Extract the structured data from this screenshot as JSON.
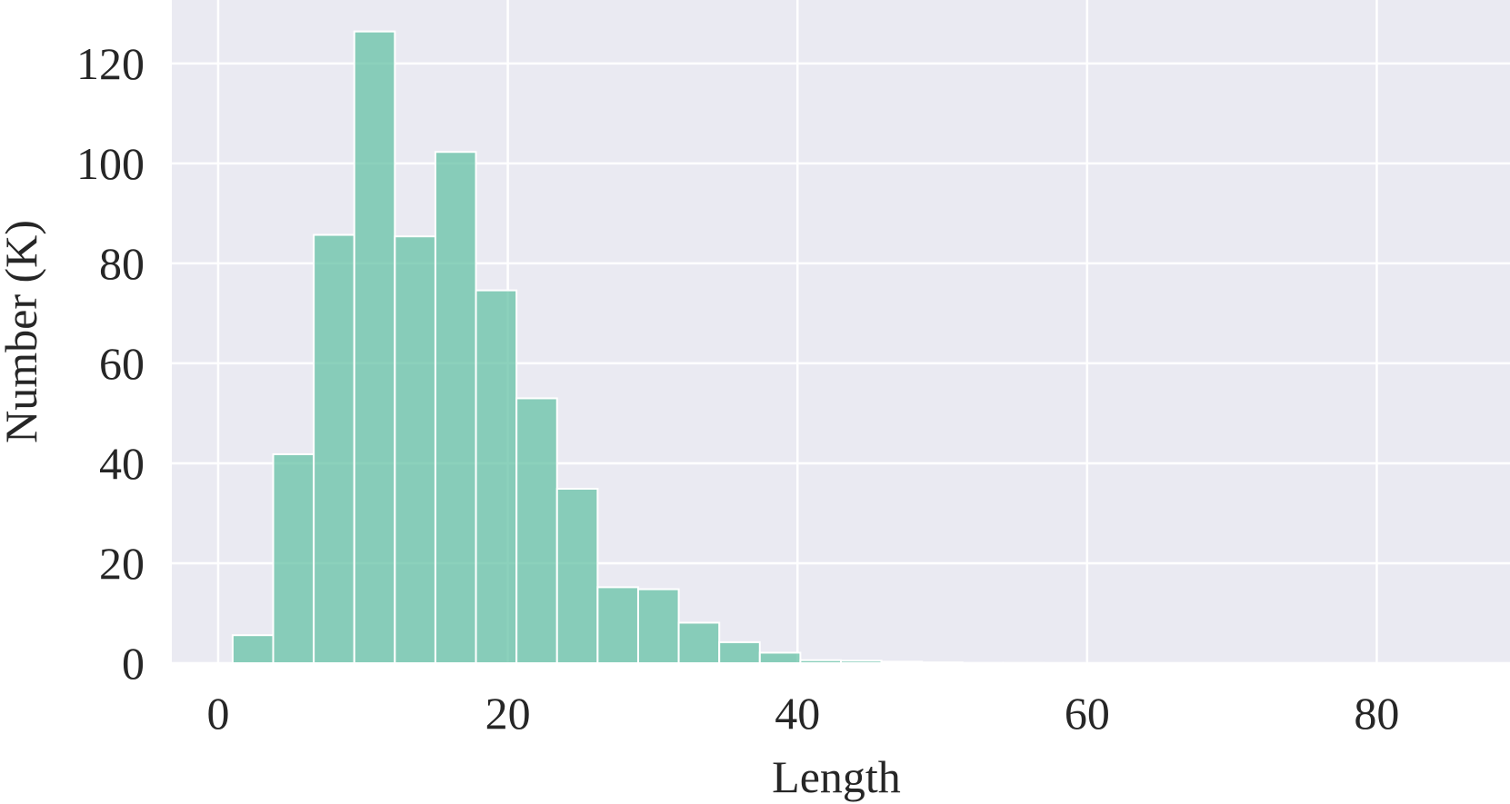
{
  "chart_data": {
    "type": "histogram",
    "xlabel": "Length",
    "ylabel": "Number (K)",
    "bins": [
      1,
      3.8,
      6.6,
      9.4,
      12.2,
      15,
      17.8,
      20.6,
      23.4,
      26.2,
      29,
      31.8,
      34.6,
      37.4,
      40.2,
      43,
      45.8,
      48.6,
      51.4,
      54.2,
      57,
      59.8,
      62.6,
      65.4,
      68.2,
      71,
      73.8,
      76.6,
      79.4,
      82.2,
      85
    ],
    "values": [
      5.6,
      41.8,
      85.7,
      126.4,
      85.4,
      102.3,
      74.6,
      53,
      34.9,
      15.2,
      14.8,
      8.1,
      4.2,
      2.1,
      0.6,
      0.5,
      0.3,
      0.15,
      0.05,
      0.03,
      0.02,
      0.01,
      0.01,
      0,
      0,
      0,
      0,
      0,
      0,
      0.01
    ],
    "color": "#66c2a5",
    "xlim": [
      -3.2,
      89.2
    ],
    "ylim": [
      0,
      132.7
    ],
    "xticks": [
      0,
      20,
      40,
      60,
      80
    ],
    "yticks": [
      0,
      20,
      40,
      60,
      80,
      100,
      120
    ],
    "grid": true
  }
}
